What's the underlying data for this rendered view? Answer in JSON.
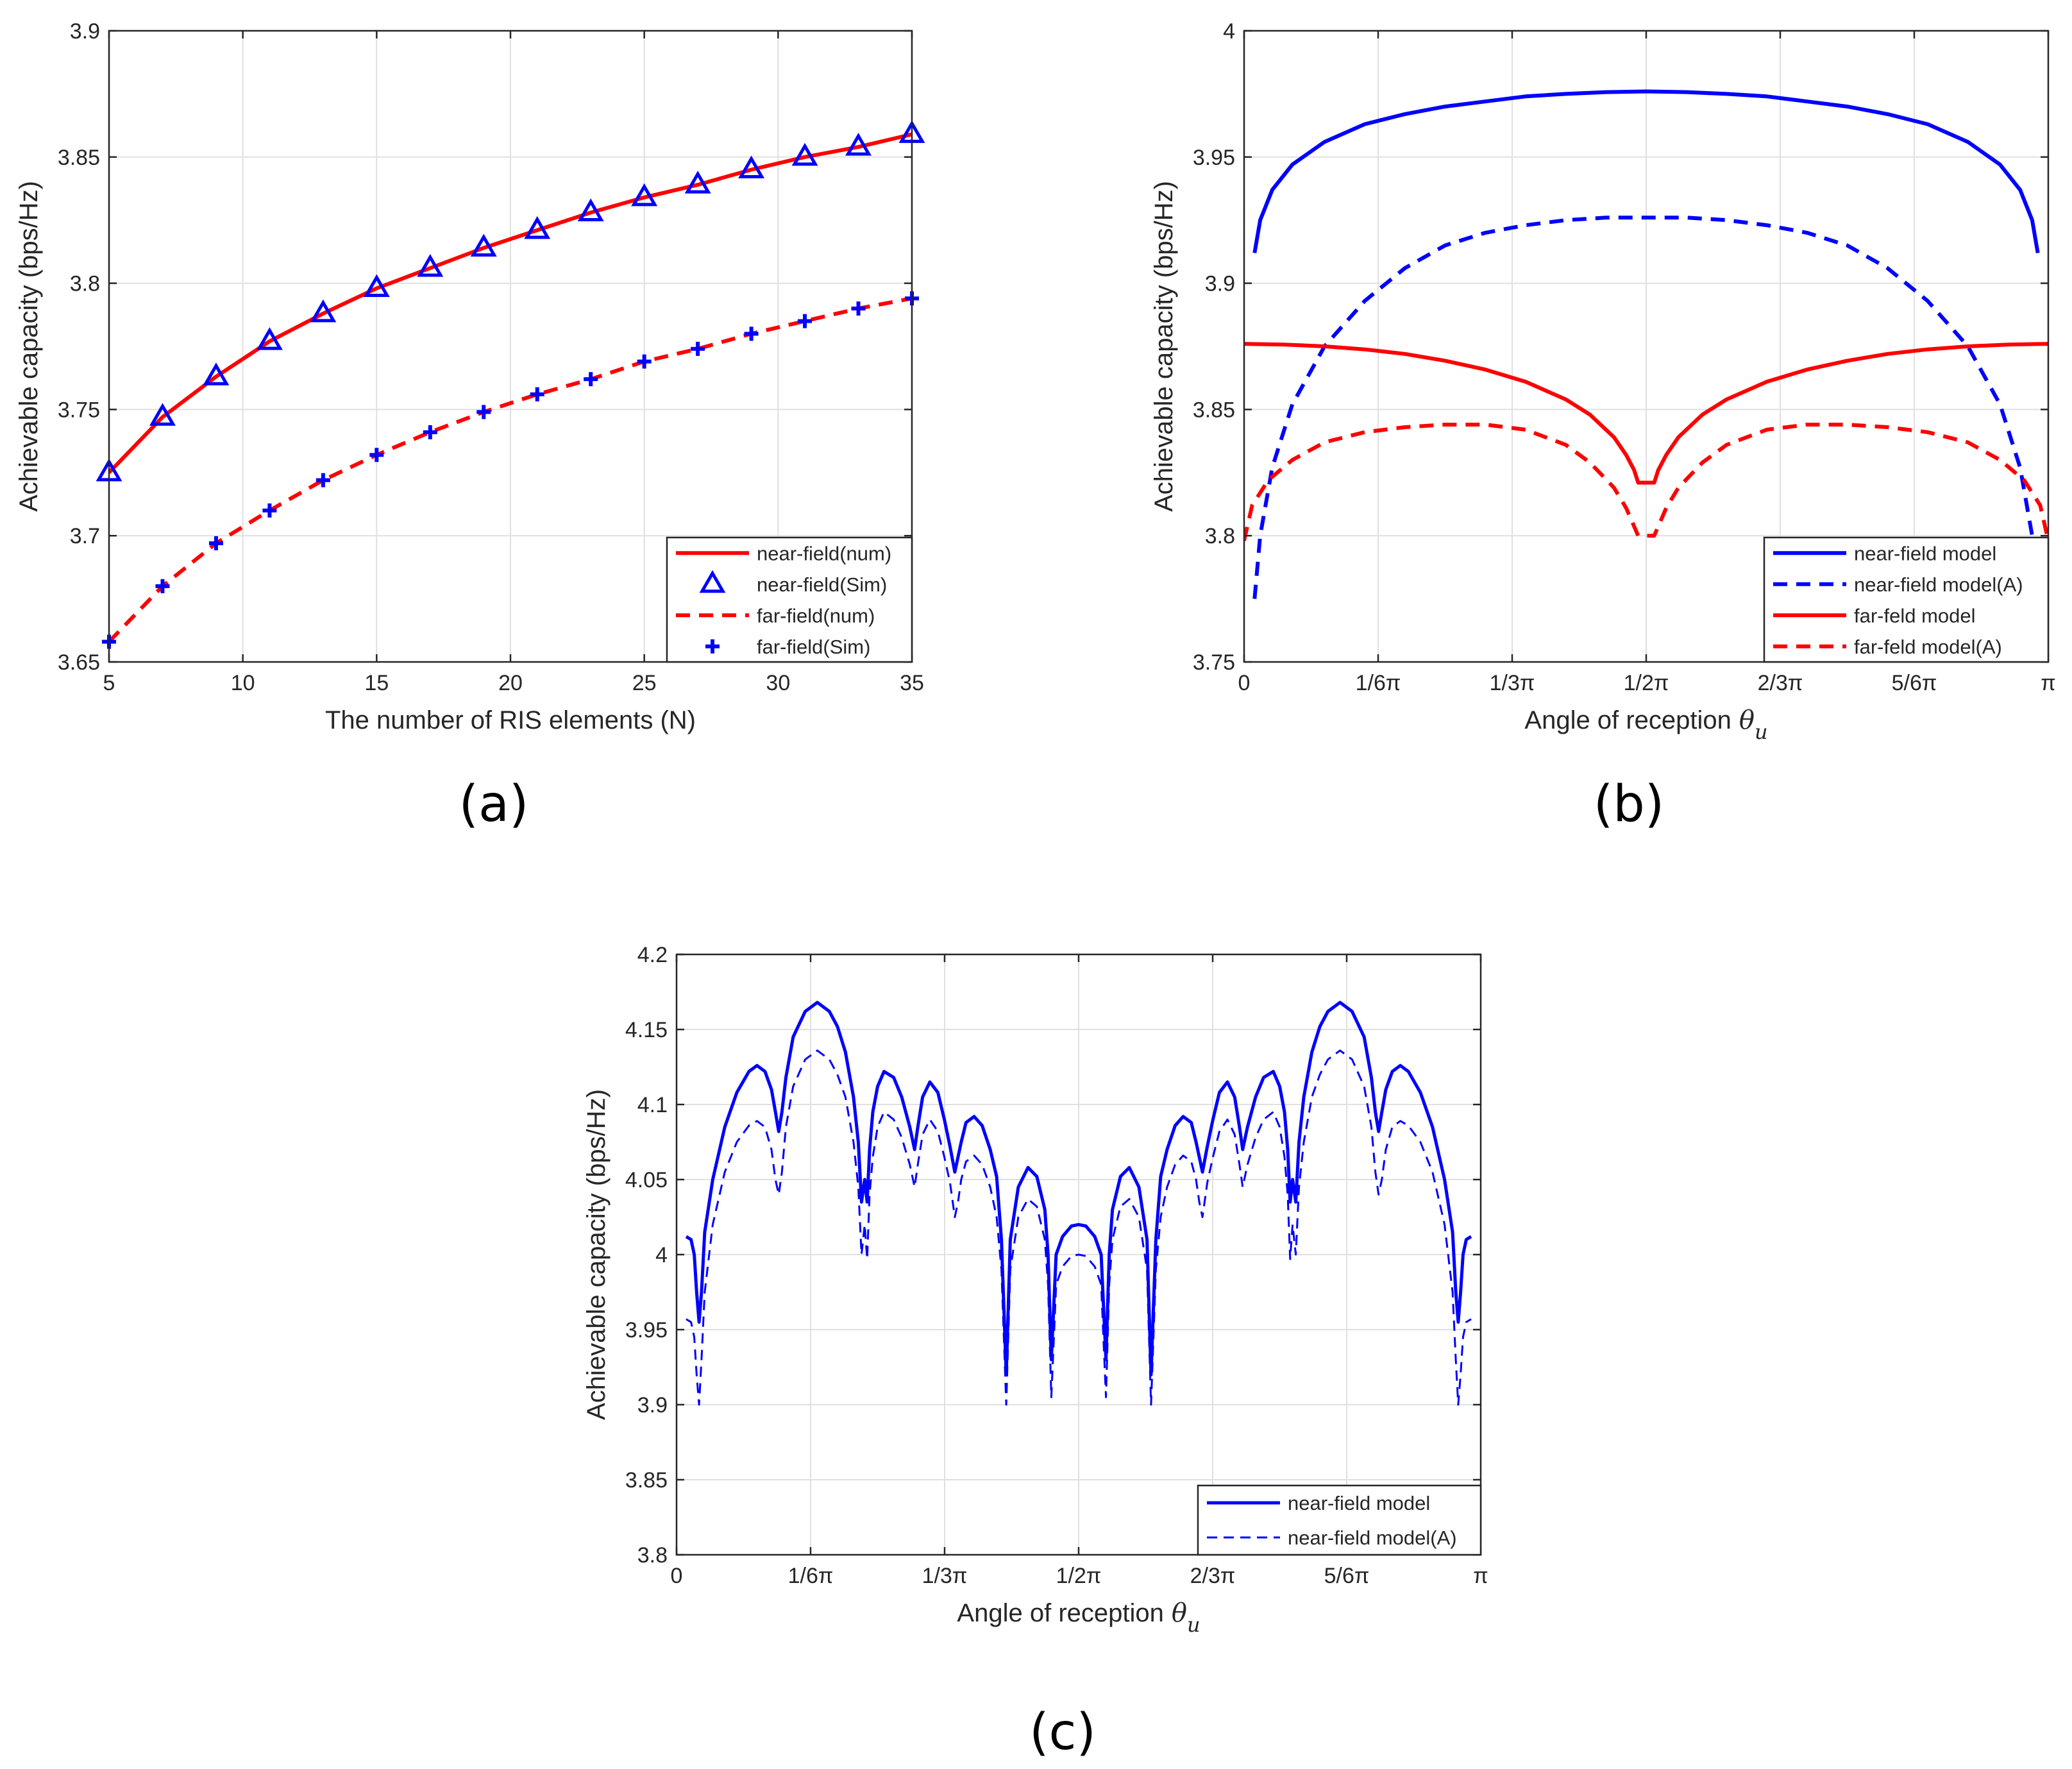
{
  "chart_data": [
    {
      "id": "a",
      "type": "line",
      "caption": "(a)",
      "xlabel": "The number of RIS elements (N)",
      "ylabel": "Achievable capacity (bps/Hz)",
      "xlim": [
        5,
        35
      ],
      "ylim": [
        3.65,
        3.9
      ],
      "xticks": [
        5,
        10,
        15,
        20,
        25,
        30,
        35
      ],
      "xtick_labels": [
        "5",
        "10",
        "15",
        "20",
        "25",
        "30",
        "35"
      ],
      "yticks": [
        3.65,
        3.7,
        3.75,
        3.8,
        3.85,
        3.9
      ],
      "ytick_labels": [
        "3.65",
        "3.7",
        "3.75",
        "3.8",
        "3.85",
        "3.9"
      ],
      "grid": true,
      "legend_position": "bottom-right",
      "x": [
        5,
        7,
        9,
        11,
        13,
        15,
        17,
        19,
        21,
        23,
        25,
        27,
        29,
        31,
        33,
        35
      ],
      "series": [
        {
          "name": "near-field(num)",
          "color": "#ff0000",
          "style": "solid",
          "marker": "none",
          "values": [
            3.725,
            3.747,
            3.763,
            3.777,
            3.788,
            3.798,
            3.806,
            3.814,
            3.821,
            3.828,
            3.834,
            3.839,
            3.845,
            3.85,
            3.854,
            3.859
          ]
        },
        {
          "name": "near-field(Sim)",
          "color": "#0000ff",
          "style": "none",
          "marker": "triangle",
          "values": [
            3.725,
            3.747,
            3.763,
            3.777,
            3.788,
            3.798,
            3.806,
            3.814,
            3.821,
            3.828,
            3.834,
            3.839,
            3.845,
            3.85,
            3.854,
            3.859
          ]
        },
        {
          "name": "far-field(num)",
          "color": "#ff0000",
          "style": "dashed",
          "marker": "none",
          "values": [
            3.658,
            3.68,
            3.697,
            3.71,
            3.722,
            3.732,
            3.741,
            3.749,
            3.756,
            3.762,
            3.769,
            3.774,
            3.78,
            3.785,
            3.79,
            3.794
          ]
        },
        {
          "name": "far-field(Sim)",
          "color": "#0000ff",
          "style": "none",
          "marker": "plus",
          "values": [
            3.658,
            3.68,
            3.697,
            3.71,
            3.722,
            3.732,
            3.741,
            3.749,
            3.756,
            3.762,
            3.769,
            3.774,
            3.78,
            3.785,
            3.79,
            3.794
          ]
        }
      ]
    },
    {
      "id": "b",
      "type": "line",
      "caption": "(b)",
      "xlabel": "Angle of reception",
      "xlabel_symbol": "θ",
      "xlabel_subscript": "u",
      "ylabel": "Achievable capacity (bps/Hz)",
      "xlim": [
        0,
        1
      ],
      "ylim": [
        3.75,
        4.0
      ],
      "xticks": [
        0,
        0.16667,
        0.33333,
        0.5,
        0.66667,
        0.83333,
        1
      ],
      "xtick_labels": [
        "0",
        "1/6π",
        "1/3π",
        "1/2π",
        "2/3π",
        "5/6π",
        "π"
      ],
      "yticks": [
        3.75,
        3.8,
        3.85,
        3.9,
        3.95,
        4.0
      ],
      "ytick_labels": [
        "3.75",
        "3.8",
        "3.85",
        "3.9",
        "3.95",
        "4"
      ],
      "grid": true,
      "legend_position": "bottom-right",
      "series": [
        {
          "name": "near-field model",
          "color": "#0000ff",
          "style": "solid",
          "x": [
            0.013,
            0.02,
            0.035,
            0.06,
            0.1,
            0.15,
            0.2,
            0.25,
            0.3,
            0.35,
            0.4,
            0.45,
            0.5,
            0.55,
            0.6,
            0.65,
            0.7,
            0.75,
            0.8,
            0.85,
            0.9,
            0.94,
            0.965,
            0.98,
            0.987
          ],
          "values": [
            3.912,
            3.925,
            3.937,
            3.947,
            3.956,
            3.963,
            3.967,
            3.97,
            3.972,
            3.974,
            3.975,
            3.9757,
            3.976,
            3.9757,
            3.975,
            3.974,
            3.972,
            3.97,
            3.967,
            3.963,
            3.956,
            3.947,
            3.937,
            3.925,
            3.912
          ]
        },
        {
          "name": "near-field model(A)",
          "color": "#0000ff",
          "style": "dashed",
          "x": [
            0.013,
            0.02,
            0.035,
            0.06,
            0.1,
            0.15,
            0.2,
            0.25,
            0.3,
            0.35,
            0.4,
            0.45,
            0.5,
            0.55,
            0.6,
            0.65,
            0.7,
            0.75,
            0.8,
            0.85,
            0.9,
            0.94,
            0.965,
            0.98,
            0.987
          ],
          "values": [
            3.775,
            3.8,
            3.827,
            3.852,
            3.875,
            3.893,
            3.906,
            3.915,
            3.92,
            3.923,
            3.925,
            3.926,
            3.926,
            3.926,
            3.925,
            3.923,
            3.92,
            3.915,
            3.906,
            3.893,
            3.875,
            3.852,
            3.827,
            3.8,
            3.775
          ]
        },
        {
          "name": "far-feld model",
          "color": "#ff0000",
          "style": "solid",
          "x": [
            0.0,
            0.05,
            0.1,
            0.15,
            0.2,
            0.25,
            0.3,
            0.35,
            0.4,
            0.43,
            0.46,
            0.475,
            0.485,
            0.49,
            0.51,
            0.515,
            0.525,
            0.54,
            0.57,
            0.6,
            0.65,
            0.7,
            0.75,
            0.8,
            0.85,
            0.9,
            0.95,
            1.0
          ],
          "values": [
            3.876,
            3.8757,
            3.875,
            3.8738,
            3.872,
            3.8693,
            3.8658,
            3.861,
            3.854,
            3.848,
            3.839,
            3.832,
            3.826,
            3.821,
            3.821,
            3.826,
            3.832,
            3.839,
            3.848,
            3.854,
            3.861,
            3.8658,
            3.8693,
            3.872,
            3.8738,
            3.875,
            3.8757,
            3.876
          ]
        },
        {
          "name": "far-feld model(A)",
          "color": "#ff0000",
          "style": "dashed",
          "x": [
            0.0,
            0.01,
            0.03,
            0.06,
            0.1,
            0.15,
            0.2,
            0.25,
            0.3,
            0.35,
            0.4,
            0.43,
            0.46,
            0.475,
            0.49,
            0.51,
            0.525,
            0.54,
            0.57,
            0.6,
            0.65,
            0.7,
            0.75,
            0.8,
            0.85,
            0.9,
            0.94,
            0.97,
            0.99,
            1.0
          ],
          "values": [
            3.798,
            3.812,
            3.822,
            3.83,
            3.837,
            3.841,
            3.843,
            3.844,
            3.844,
            3.842,
            3.836,
            3.829,
            3.819,
            3.811,
            3.8,
            3.8,
            3.811,
            3.819,
            3.829,
            3.836,
            3.842,
            3.844,
            3.844,
            3.843,
            3.841,
            3.837,
            3.83,
            3.822,
            3.812,
            3.798
          ]
        }
      ]
    },
    {
      "id": "c",
      "type": "line",
      "caption": "(c)",
      "xlabel": "Angle of reception",
      "xlabel_symbol": "θ",
      "xlabel_subscript": "u",
      "ylabel": "Achievable capacity (bps/Hz)",
      "xlim": [
        0,
        1
      ],
      "ylim": [
        3.8,
        4.2
      ],
      "xticks": [
        0,
        0.16667,
        0.33333,
        0.5,
        0.66667,
        0.83333,
        1
      ],
      "xtick_labels": [
        "0",
        "1/6π",
        "1/3π",
        "1/2π",
        "2/3π",
        "5/6π",
        "π"
      ],
      "yticks": [
        3.8,
        3.85,
        3.9,
        3.95,
        4.0,
        4.05,
        4.1,
        4.15,
        4.2
      ],
      "ytick_labels": [
        "3.8",
        "3.85",
        "3.9",
        "3.95",
        "4",
        "4.05",
        "4.1",
        "4.15",
        "4.2"
      ],
      "grid": true,
      "legend_position": "bottom-right",
      "series": [
        {
          "name": "near-field model",
          "color": "#0000ff",
          "style": "solid",
          "lw": 5,
          "x": [
            0.012,
            0.018,
            0.022,
            0.025,
            0.028,
            0.031,
            0.035,
            0.045,
            0.06,
            0.075,
            0.09,
            0.1,
            0.11,
            0.118,
            0.123,
            0.127,
            0.131,
            0.136,
            0.145,
            0.16,
            0.175,
            0.19,
            0.2,
            0.21,
            0.22,
            0.226,
            0.23,
            0.234,
            0.237,
            0.24,
            0.244,
            0.25,
            0.258,
            0.27,
            0.28,
            0.29,
            0.296,
            0.3,
            0.306,
            0.315,
            0.325,
            0.333,
            0.34,
            0.346,
            0.35,
            0.354,
            0.36,
            0.37,
            0.38,
            0.39,
            0.398,
            0.404,
            0.41,
            0.415,
            0.425,
            0.437,
            0.448,
            0.458,
            0.462,
            0.466,
            0.472,
            0.48,
            0.491,
            0.5,
            0.509,
            0.52,
            0.528,
            0.534,
            0.538,
            0.542,
            0.552,
            0.563,
            0.575,
            0.585,
            0.59,
            0.596,
            0.602,
            0.61,
            0.62,
            0.63,
            0.64,
            0.646,
            0.65,
            0.654,
            0.66,
            0.667,
            0.675,
            0.685,
            0.694,
            0.7,
            0.704,
            0.71,
            0.72,
            0.73,
            0.742,
            0.75,
            0.756,
            0.76,
            0.763,
            0.766,
            0.77,
            0.774,
            0.78,
            0.79,
            0.8,
            0.81,
            0.825,
            0.84,
            0.855,
            0.864,
            0.869,
            0.873,
            0.877,
            0.882,
            0.89,
            0.9,
            0.91,
            0.925,
            0.94,
            0.955,
            0.965,
            0.969,
            0.972,
            0.975,
            0.978,
            0.982,
            0.988
          ],
          "values": [
            4.012,
            4.01,
            4.0,
            3.975,
            3.955,
            3.975,
            4.015,
            4.05,
            4.085,
            4.108,
            4.122,
            4.126,
            4.122,
            4.11,
            4.095,
            4.082,
            4.095,
            4.118,
            4.145,
            4.162,
            4.168,
            4.162,
            4.152,
            4.135,
            4.105,
            4.075,
            4.035,
            4.05,
            4.035,
            4.07,
            4.095,
            4.112,
            4.122,
            4.118,
            4.105,
            4.085,
            4.07,
            4.085,
            4.105,
            4.115,
            4.108,
            4.09,
            4.072,
            4.055,
            4.065,
            4.075,
            4.088,
            4.092,
            4.086,
            4.07,
            4.052,
            4.01,
            3.92,
            4.01,
            4.045,
            4.058,
            4.052,
            4.03,
            4.0,
            3.93,
            4.0,
            4.012,
            4.019,
            4.02,
            4.019,
            4.012,
            4.0,
            3.93,
            4.0,
            4.03,
            4.052,
            4.058,
            4.045,
            4.01,
            3.92,
            4.01,
            4.052,
            4.07,
            4.086,
            4.092,
            4.088,
            4.075,
            4.065,
            4.055,
            4.072,
            4.09,
            4.108,
            4.115,
            4.105,
            4.085,
            4.07,
            4.085,
            4.105,
            4.118,
            4.122,
            4.112,
            4.095,
            4.07,
            4.035,
            4.05,
            4.035,
            4.075,
            4.105,
            4.135,
            4.152,
            4.162,
            4.168,
            4.162,
            4.145,
            4.118,
            4.095,
            4.082,
            4.095,
            4.11,
            4.122,
            4.126,
            4.122,
            4.108,
            4.085,
            4.05,
            4.015,
            3.975,
            3.955,
            3.975,
            4.0,
            4.01,
            4.012
          ]
        },
        {
          "name": "near-field model(A)",
          "color": "#0000ff",
          "style": "dashed",
          "lw": 3,
          "x": [
            0.012,
            0.018,
            0.022,
            0.025,
            0.028,
            0.031,
            0.035,
            0.045,
            0.06,
            0.075,
            0.09,
            0.1,
            0.11,
            0.118,
            0.123,
            0.127,
            0.131,
            0.136,
            0.145,
            0.16,
            0.175,
            0.19,
            0.2,
            0.21,
            0.22,
            0.226,
            0.23,
            0.234,
            0.237,
            0.24,
            0.244,
            0.25,
            0.258,
            0.27,
            0.28,
            0.29,
            0.296,
            0.3,
            0.306,
            0.315,
            0.325,
            0.333,
            0.34,
            0.346,
            0.35,
            0.354,
            0.36,
            0.37,
            0.38,
            0.39,
            0.398,
            0.404,
            0.41,
            0.415,
            0.425,
            0.437,
            0.448,
            0.458,
            0.462,
            0.466,
            0.472,
            0.48,
            0.491,
            0.5,
            0.509,
            0.52,
            0.528,
            0.534,
            0.538,
            0.542,
            0.552,
            0.563,
            0.575,
            0.585,
            0.59,
            0.596,
            0.602,
            0.61,
            0.62,
            0.63,
            0.64,
            0.646,
            0.65,
            0.654,
            0.66,
            0.667,
            0.675,
            0.685,
            0.694,
            0.7,
            0.704,
            0.71,
            0.72,
            0.73,
            0.742,
            0.75,
            0.756,
            0.76,
            0.763,
            0.766,
            0.77,
            0.774,
            0.78,
            0.79,
            0.8,
            0.81,
            0.825,
            0.84,
            0.855,
            0.864,
            0.869,
            0.873,
            0.877,
            0.882,
            0.89,
            0.9,
            0.91,
            0.925,
            0.94,
            0.955,
            0.965,
            0.969,
            0.972,
            0.975,
            0.978,
            0.982,
            0.988
          ],
          "values": [
            3.957,
            3.955,
            3.945,
            3.92,
            3.9,
            3.93,
            3.975,
            4.02,
            4.055,
            4.075,
            4.086,
            4.089,
            4.085,
            4.07,
            4.05,
            4.04,
            4.055,
            4.085,
            4.112,
            4.13,
            4.136,
            4.13,
            4.12,
            4.105,
            4.075,
            4.045,
            4.0,
            4.02,
            3.997,
            4.04,
            4.065,
            4.085,
            4.095,
            4.09,
            4.078,
            4.06,
            4.045,
            4.06,
            4.08,
            4.09,
            4.082,
            4.065,
            4.048,
            4.025,
            4.035,
            4.05,
            4.062,
            4.066,
            4.06,
            4.045,
            4.025,
            3.99,
            3.9,
            3.99,
            4.025,
            4.037,
            4.032,
            4.01,
            3.98,
            3.905,
            3.98,
            3.992,
            3.999,
            4.0,
            3.999,
            3.992,
            3.98,
            3.905,
            3.98,
            4.01,
            4.032,
            4.037,
            4.025,
            3.99,
            3.9,
            3.99,
            4.025,
            4.045,
            4.06,
            4.066,
            4.062,
            4.05,
            4.035,
            4.025,
            4.048,
            4.065,
            4.082,
            4.09,
            4.08,
            4.06,
            4.045,
            4.06,
            4.078,
            4.09,
            4.095,
            4.085,
            4.065,
            4.04,
            3.997,
            4.02,
            4.0,
            4.045,
            4.075,
            4.105,
            4.12,
            4.13,
            4.136,
            4.13,
            4.112,
            4.085,
            4.055,
            4.04,
            4.05,
            4.07,
            4.085,
            4.089,
            4.086,
            4.075,
            4.055,
            4.02,
            3.975,
            3.93,
            3.9,
            3.92,
            3.945,
            3.955,
            3.957
          ]
        }
      ]
    }
  ]
}
